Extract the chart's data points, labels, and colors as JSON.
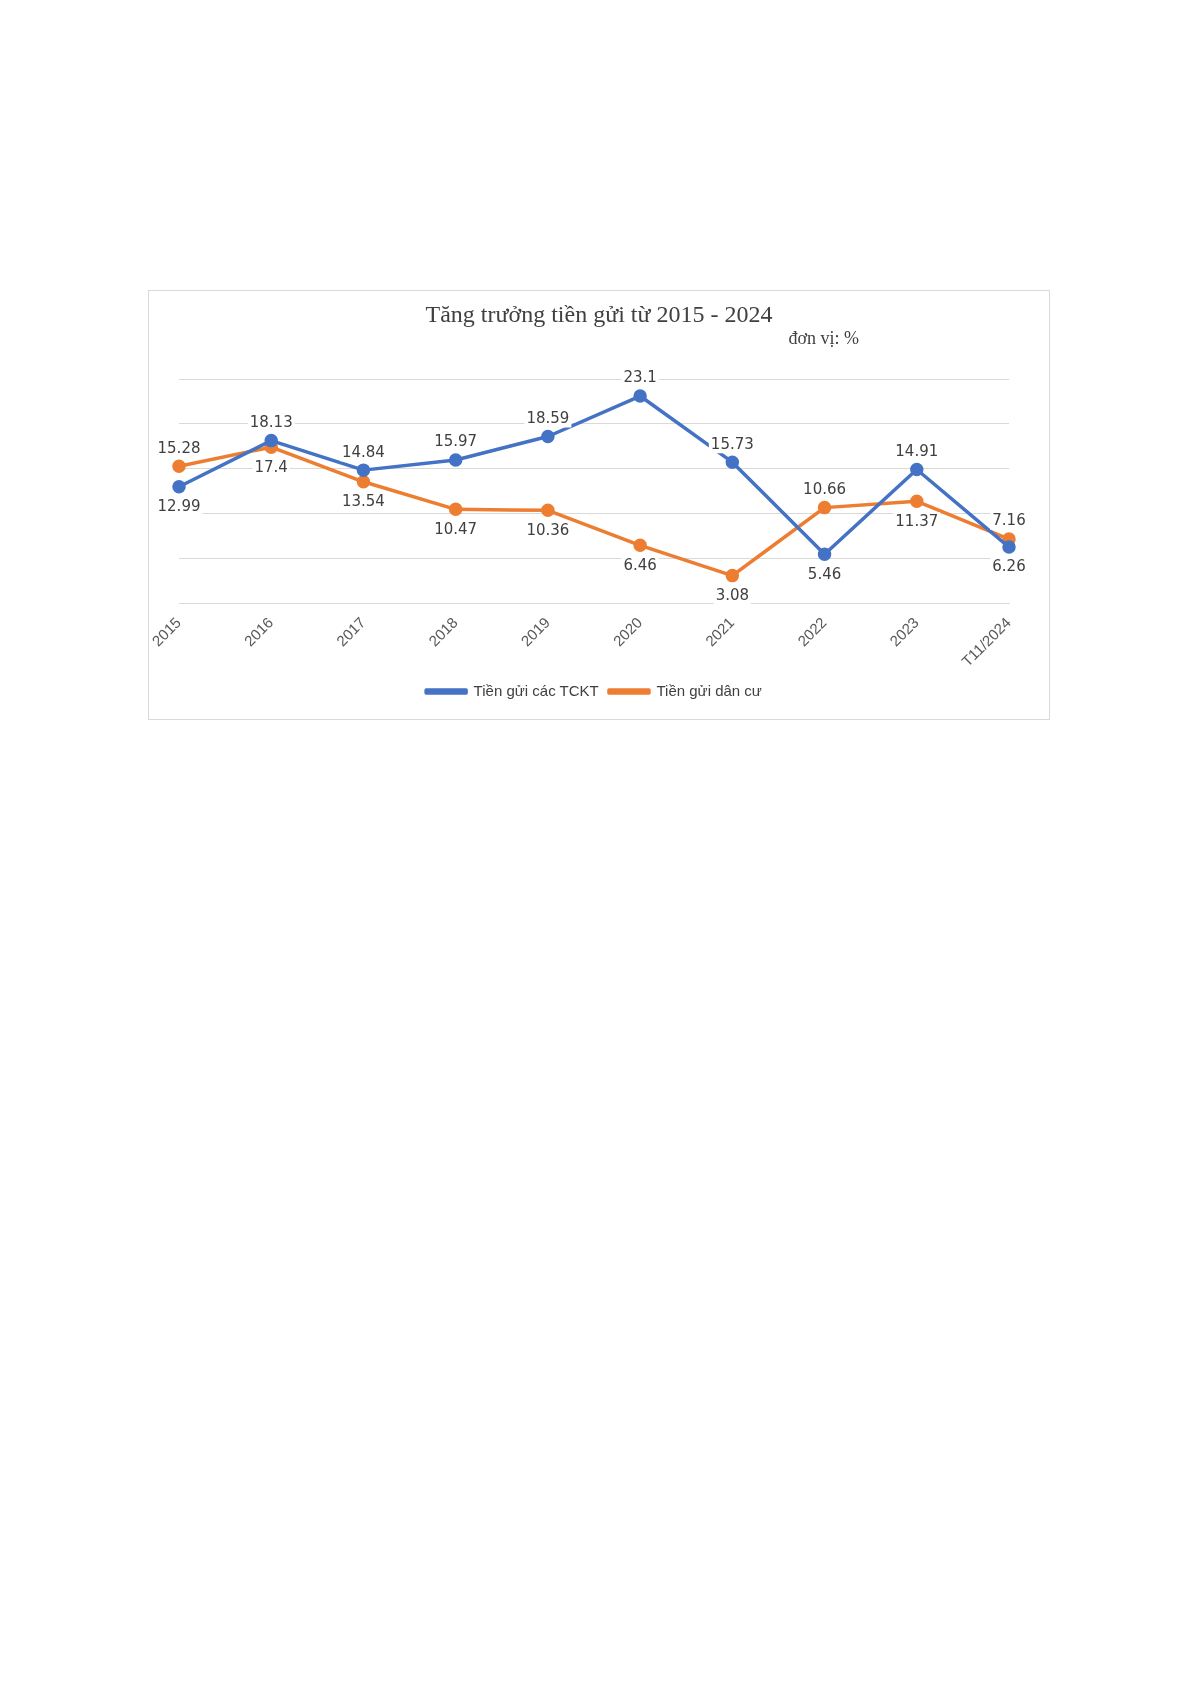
{
  "chart_data": {
    "type": "line",
    "title": "Tăng trưởng tiền gửi từ 2015 - 2024",
    "subtitle": "đơn vị: %",
    "categories": [
      "2015",
      "2016",
      "2017",
      "2018",
      "2019",
      "2020",
      "2021",
      "2022",
      "2023",
      "T11/2024"
    ],
    "series": [
      {
        "name": "Tiền gửi các TCKT",
        "color": "#4472c4",
        "values": [
          12.99,
          18.13,
          14.84,
          15.97,
          18.59,
          23.1,
          15.73,
          5.46,
          14.91,
          6.26
        ]
      },
      {
        "name": "Tiền gửi dân cư",
        "color": "#ed7d31",
        "values": [
          15.28,
          17.4,
          13.54,
          10.47,
          10.36,
          6.46,
          3.08,
          10.66,
          11.37,
          7.16
        ]
      }
    ],
    "ylim": [
      0,
      25
    ],
    "yticks": [
      {
        "value": 0,
        "label": null
      },
      {
        "value": 5,
        "label": null
      },
      {
        "value": 10,
        "label": null
      },
      {
        "value": 15,
        "label": null
      },
      {
        "value": 20,
        "label": null
      },
      {
        "value": 25,
        "label": null
      }
    ],
    "tick_labels": "x",
    "grid": "y",
    "legend": "bottom",
    "marker": "circle",
    "line_style": "solid",
    "data_labels": true
  }
}
